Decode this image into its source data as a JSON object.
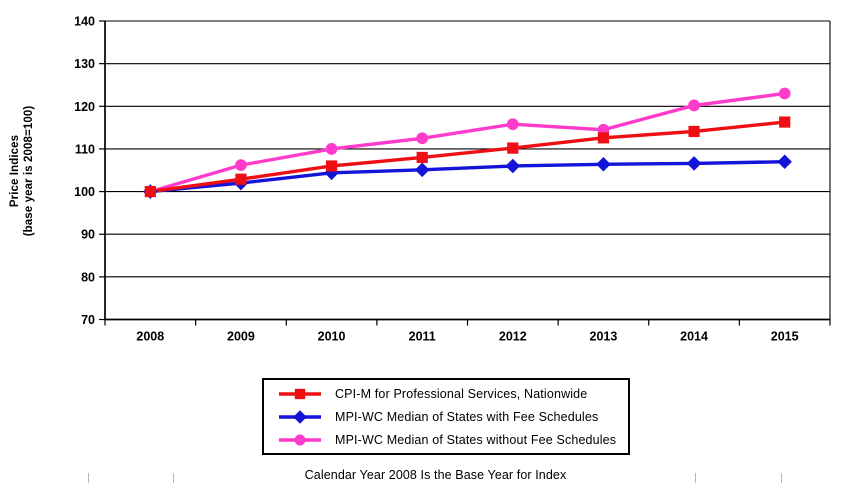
{
  "chart_data": {
    "type": "line",
    "title": "",
    "categories": [
      "2008",
      "2009",
      "2010",
      "2011",
      "2012",
      "2013",
      "2014",
      "2015"
    ],
    "series": [
      {
        "name": "CPI-M for Professional Services, Nationwide",
        "color": "#ee0f14",
        "marker": "square",
        "values": [
          100,
          102.9,
          106.0,
          108.0,
          110.2,
          112.6,
          114.1,
          116.3
        ]
      },
      {
        "name": "MPI-WC Median of States with Fee Schedules",
        "color": "#1414d8",
        "marker": "diamond",
        "values": [
          100,
          102.0,
          104.4,
          105.1,
          106.0,
          106.4,
          106.6,
          107.0
        ]
      },
      {
        "name": "MPI-WC Median of States without Fee Schedules",
        "color": "#ff3bcb",
        "marker": "circle",
        "values": [
          100,
          106.2,
          110.0,
          112.5,
          115.8,
          114.5,
          120.2,
          123.0
        ]
      }
    ],
    "ylabel_line1": "Price Indices",
    "ylabel_line2": "(base year is 2008=100)",
    "xlabel": "",
    "ylim": [
      70,
      140
    ],
    "ytick_step": 10,
    "grid": "horizontal",
    "legend_position": "bottom"
  },
  "caption": "Calendar Year 2008 Is the Base Year for Index"
}
